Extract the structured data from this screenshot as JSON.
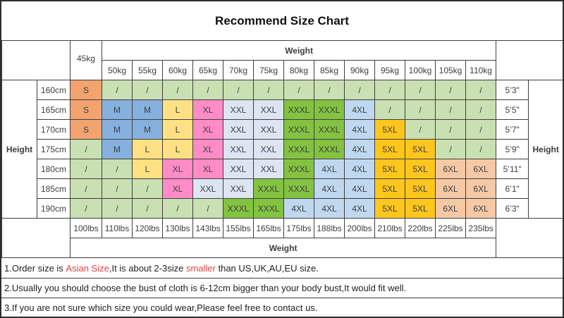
{
  "title": "Recommend Size Chart",
  "chart_data": {
    "type": "table",
    "title": "Recommend Size Chart",
    "weight_axis_label": "Weight",
    "height_axis_label": "Height",
    "weight_columns_kg": [
      "45kg",
      "50kg",
      "55kg",
      "60kg",
      "65kg",
      "70kg",
      "75kg",
      "80kg",
      "85kg",
      "90kg",
      "95kg",
      "100kg",
      "105kg",
      "110kg"
    ],
    "weight_columns_lbs": [
      "100lbs",
      "110lbs",
      "120lbs",
      "130lbs",
      "143lbs",
      "155lbs",
      "165lbs",
      "175lbs",
      "188lbs",
      "200lbs",
      "210lbs",
      "220lbs",
      "225lbs",
      "235lbs"
    ],
    "rows": [
      {
        "cm": "160cm",
        "inches": "5’3\"",
        "sizes": [
          "S",
          "/",
          "/",
          "/",
          "/",
          "/",
          "/",
          "/",
          "/",
          "/",
          "/",
          "/",
          "/",
          "/"
        ]
      },
      {
        "cm": "165cm",
        "inches": "5’5\"",
        "sizes": [
          "S",
          "M",
          "M",
          "L",
          "XL",
          "XXL",
          "XXL",
          "XXXL",
          "XXXL",
          "4XL",
          "/",
          "/",
          "/",
          "/"
        ]
      },
      {
        "cm": "170cm",
        "inches": "5’7\"",
        "sizes": [
          "S",
          "M",
          "M",
          "L",
          "XL",
          "XXL",
          "XXL",
          "XXXL",
          "XXXL",
          "4XL",
          "5XL",
          "/",
          "/",
          "/"
        ]
      },
      {
        "cm": "175cm",
        "inches": "5’9\"",
        "sizes": [
          "/",
          "M",
          "L",
          "L",
          "XL",
          "XXL",
          "XXL",
          "XXXL",
          "XXXL",
          "4XL",
          "5XL",
          "5XL",
          "/",
          "/"
        ]
      },
      {
        "cm": "180cm",
        "inches": "5’11\"",
        "sizes": [
          "/",
          "/",
          "L",
          "XL",
          "XL",
          "XXL",
          "XXL",
          "XXXL",
          "4XL",
          "4XL",
          "5XL",
          "5XL",
          "6XL",
          "6XL"
        ]
      },
      {
        "cm": "185cm",
        "inches": "6’1\"",
        "sizes": [
          "/",
          "/",
          "/",
          "XL",
          "XXL",
          "XXL",
          "XXXL",
          "XXXL",
          "4XL",
          "4XL",
          "5XL",
          "5XL",
          "6XL",
          "6XL"
        ]
      },
      {
        "cm": "190cm",
        "inches": "6’3\"",
        "sizes": [
          "/",
          "/",
          "/",
          "/",
          "/",
          "XXXL",
          "XXXL",
          "4XL",
          "4XL",
          "4XL",
          "5XL",
          "5XL",
          "6XL",
          "6XL"
        ]
      }
    ]
  },
  "size_colors": {
    "S": "#F2A36E",
    "M": "#86B1DE",
    "L": "#FFE183",
    "XL": "#FF8CC6",
    "XXL": "#DDE5F2",
    "XXXL": "#83C341",
    "4XL": "#BFD8F0",
    "5XL": "#FFC61E",
    "6XL": "#F5C9A6",
    "/": "#C9E0B2"
  },
  "notes": [
    {
      "parts": [
        {
          "text": "1.Order size is "
        },
        {
          "text": "Asian Size",
          "red": true
        },
        {
          "text": ",It is about 2-3size "
        },
        {
          "text": "smaller",
          "red": true
        },
        {
          "text": " than US,UK,AU,EU size."
        }
      ]
    },
    {
      "parts": [
        {
          "text": "2.Usually you should choose the bust of cloth is 6-12cm bigger than your body bust,It would fit well."
        }
      ]
    },
    {
      "parts": [
        {
          "text": "3.If you are not sure which size you could wear,Please feel free to contact us."
        }
      ]
    }
  ],
  "note_red_color": "#e04444"
}
